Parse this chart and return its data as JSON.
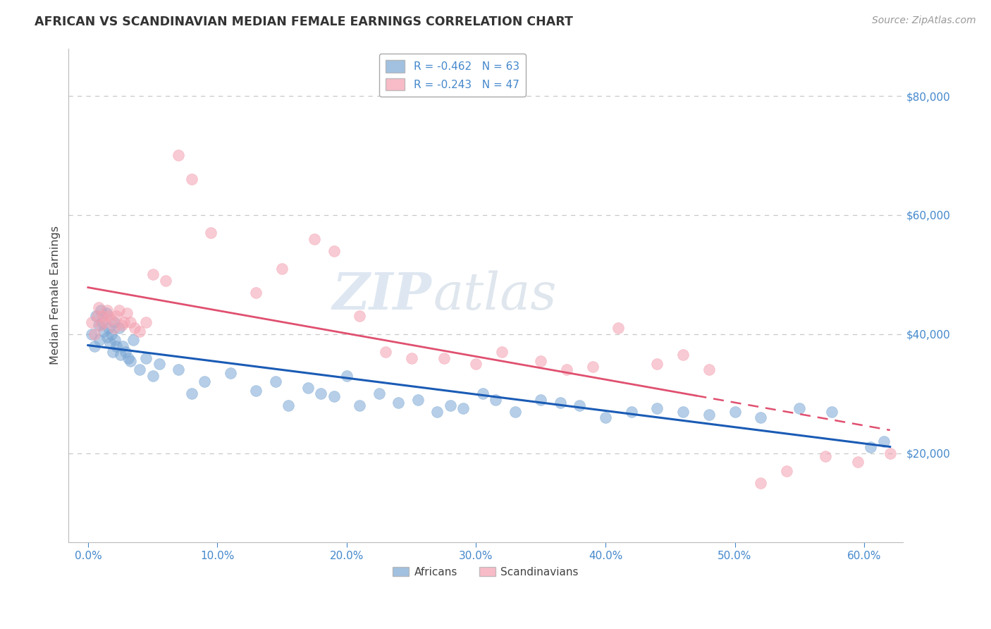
{
  "title": "AFRICAN VS SCANDINAVIAN MEDIAN FEMALE EARNINGS CORRELATION CHART",
  "source": "Source: ZipAtlas.com",
  "ylabel": "Median Female Earnings",
  "xlabel_ticks": [
    "0.0%",
    "10.0%",
    "20.0%",
    "30.0%",
    "40.0%",
    "50.0%",
    "60.0%"
  ],
  "xlabel_vals": [
    0.0,
    10.0,
    20.0,
    30.0,
    40.0,
    50.0,
    60.0
  ],
  "ylabel_ticks": [
    20000,
    40000,
    60000,
    80000
  ],
  "ylabel_labels": [
    "$20,000",
    "$40,000",
    "$60,000",
    "$80,000"
  ],
  "xlim": [
    -1.5,
    63.0
  ],
  "ylim": [
    5000,
    88000
  ],
  "legend_labels": [
    "Africans",
    "Scandinavians"
  ],
  "watermark": "ZIPatlas",
  "african_color": "#7BA7D4",
  "scandinavian_color": "#F4A0B0",
  "african_line_color": "#1A5BB5",
  "scandinavian_line_color": "#E05070",
  "background_color": "#FFFFFF",
  "grid_color": "#C8C8C8",
  "title_color": "#333333",
  "axis_label_color": "#444444",
  "tick_label_color": "#4488CC",
  "africans_x": [
    0.3,
    0.5,
    0.6,
    0.8,
    0.9,
    1.0,
    1.1,
    1.2,
    1.4,
    1.5,
    1.6,
    1.7,
    1.8,
    1.9,
    2.0,
    2.1,
    2.2,
    2.4,
    2.5,
    2.7,
    2.9,
    3.1,
    3.3,
    3.5,
    4.0,
    4.5,
    5.0,
    5.5,
    7.0,
    8.0,
    9.0,
    11.0,
    13.0,
    14.5,
    15.5,
    17.0,
    18.0,
    19.0,
    20.0,
    21.0,
    22.5,
    24.0,
    25.5,
    27.0,
    28.0,
    29.0,
    30.5,
    31.5,
    33.0,
    35.0,
    36.5,
    38.0,
    40.0,
    42.0,
    44.0,
    46.0,
    48.0,
    50.0,
    52.0,
    55.0,
    57.5,
    60.5,
    61.5
  ],
  "africans_y": [
    40000,
    38000,
    43000,
    41500,
    39000,
    44000,
    42000,
    40500,
    43500,
    39500,
    41000,
    38500,
    40000,
    37000,
    42000,
    39000,
    38000,
    41000,
    36500,
    38000,
    37000,
    36000,
    35500,
    39000,
    34000,
    36000,
    33000,
    35000,
    34000,
    30000,
    32000,
    33500,
    30500,
    32000,
    28000,
    31000,
    30000,
    29500,
    33000,
    28000,
    30000,
    28500,
    29000,
    27000,
    28000,
    27500,
    30000,
    29000,
    27000,
    29000,
    28500,
    28000,
    26000,
    27000,
    27500,
    27000,
    26500,
    27000,
    26000,
    27500,
    27000,
    21000,
    22000
  ],
  "scandinavians_x": [
    0.3,
    0.5,
    0.7,
    0.8,
    1.0,
    1.1,
    1.3,
    1.5,
    1.6,
    1.8,
    2.0,
    2.2,
    2.4,
    2.6,
    2.8,
    3.0,
    3.3,
    3.6,
    4.0,
    4.5,
    5.0,
    6.0,
    7.0,
    8.0,
    9.5,
    13.0,
    15.0,
    17.5,
    19.0,
    21.0,
    23.0,
    25.0,
    27.5,
    30.0,
    32.0,
    35.0,
    37.0,
    39.0,
    41.0,
    44.0,
    46.0,
    48.0,
    52.0,
    54.0,
    57.0,
    59.5,
    62.0
  ],
  "scandinavians_y": [
    42000,
    40000,
    43000,
    44500,
    41500,
    43000,
    42000,
    44000,
    43000,
    42500,
    41000,
    43000,
    44000,
    41500,
    42000,
    43500,
    42000,
    41000,
    40500,
    42000,
    50000,
    49000,
    70000,
    66000,
    57000,
    47000,
    51000,
    56000,
    54000,
    43000,
    37000,
    36000,
    36000,
    35000,
    37000,
    35500,
    34000,
    34500,
    41000,
    35000,
    36500,
    34000,
    15000,
    17000,
    19500,
    18500,
    20000
  ],
  "sc_trend_x_solid_end": 47.0,
  "sc_trend_x_dashed_start": 47.0
}
